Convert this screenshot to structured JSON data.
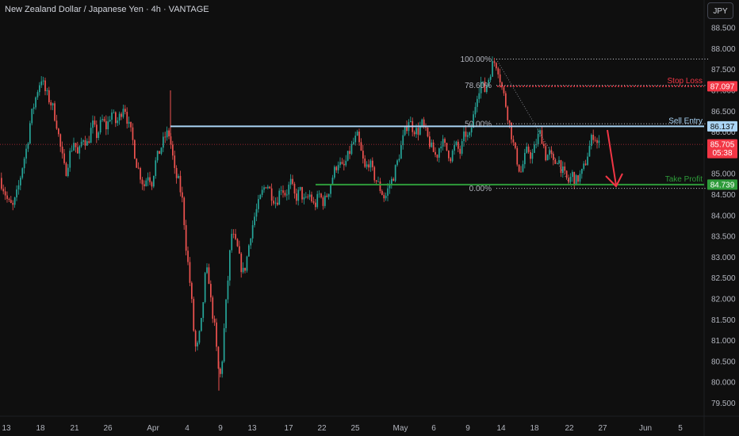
{
  "title": "New Zealand Dollar / Japanese Yen · 4h · VANTAGE",
  "currency_button": "JPY",
  "chart_data": {
    "type": "candlestick",
    "y_ticks": [
      79.5,
      80.0,
      80.5,
      81.0,
      81.5,
      82.0,
      82.5,
      83.0,
      83.5,
      84.0,
      84.5,
      85.0,
      85.5,
      86.0,
      86.5,
      87.0,
      87.5,
      88.0,
      88.5
    ],
    "ylim": [
      79.35,
      88.75
    ],
    "x_ticks": [
      "13",
      "18",
      "21",
      "26",
      "Apr",
      "4",
      "9",
      "13",
      "17",
      "22",
      "25",
      "May",
      "6",
      "9",
      "14",
      "18",
      "22",
      "27",
      "Jun",
      "5"
    ],
    "levels": [
      {
        "name": "Stop Loss",
        "value": 87.097,
        "price_label": "87.097",
        "color": "#f23645"
      },
      {
        "name": "Sell Entry",
        "value": 86.137,
        "price_label": "86.137",
        "color": "#aad4f5"
      },
      {
        "name": "Take Profit",
        "value": 84.739,
        "price_label": "84.739",
        "color": "#2e9b3a"
      }
    ],
    "last_price": {
      "value": 85.705,
      "label": "85.705",
      "countdown": "05:38",
      "color": "#f23645"
    },
    "fibonacci": [
      {
        "label": "100.00%",
        "value": 87.75
      },
      {
        "label": "78.60%",
        "value": 87.12
      },
      {
        "label": "50.00%",
        "value": 86.2
      },
      {
        "label": "0.00%",
        "value": 84.65
      }
    ],
    "path_points": [
      [
        0,
        84.9
      ],
      [
        3,
        84.8
      ],
      [
        7,
        84.6
      ],
      [
        12,
        84.3
      ],
      [
        18,
        84.2
      ],
      [
        24,
        84.6
      ],
      [
        30,
        85.2
      ],
      [
        36,
        85.7
      ],
      [
        40,
        86.3
      ],
      [
        45,
        86.7
      ],
      [
        50,
        87.1
      ],
      [
        54,
        87.3
      ],
      [
        58,
        87.0
      ],
      [
        63,
        86.8
      ],
      [
        68,
        86.6
      ],
      [
        73,
        86.2
      ],
      [
        78,
        85.6
      ],
      [
        84,
        85.0
      ],
      [
        90,
        85.5
      ],
      [
        95,
        85.8
      ],
      [
        100,
        85.4
      ],
      [
        106,
        85.9
      ],
      [
        112,
        85.7
      ],
      [
        118,
        86.2
      ],
      [
        124,
        85.9
      ],
      [
        130,
        86.3
      ],
      [
        136,
        86.1
      ],
      [
        142,
        86.5
      ],
      [
        148,
        86.2
      ],
      [
        153,
        86.4
      ],
      [
        158,
        86.7
      ],
      [
        163,
        86.2
      ],
      [
        168,
        85.9
      ],
      [
        173,
        85.3
      ],
      [
        178,
        85.0
      ],
      [
        183,
        84.7
      ],
      [
        188,
        85.0
      ],
      [
        193,
        84.8
      ],
      [
        198,
        85.3
      ],
      [
        204,
        85.6
      ],
      [
        210,
        85.9
      ],
      [
        214,
        86.0
      ],
      [
        218,
        85.6
      ],
      [
        222,
        85.0
      ],
      [
        227,
        84.8
      ],
      [
        232,
        84.3
      ],
      [
        236,
        83.3
      ],
      [
        240,
        82.6
      ],
      [
        243,
        82.0
      ],
      [
        246,
        81.2
      ],
      [
        249,
        80.7
      ],
      [
        252,
        81.0
      ],
      [
        256,
        81.5
      ],
      [
        260,
        82.5
      ],
      [
        264,
        82.7
      ],
      [
        267,
        82.0
      ],
      [
        270,
        81.6
      ],
      [
        273,
        81.2
      ],
      [
        276,
        80.4
      ],
      [
        279,
        80.1
      ],
      [
        282,
        80.6
      ],
      [
        285,
        81.5
      ],
      [
        288,
        82.2
      ],
      [
        291,
        83.0
      ],
      [
        294,
        83.6
      ],
      [
        297,
        83.4
      ],
      [
        301,
        83.2
      ],
      [
        305,
        82.8
      ],
      [
        309,
        82.6
      ],
      [
        313,
        83.0
      ],
      [
        318,
        83.6
      ],
      [
        323,
        84.0
      ],
      [
        328,
        84.3
      ],
      [
        333,
        84.6
      ],
      [
        338,
        84.8
      ],
      [
        344,
        84.5
      ],
      [
        350,
        84.3
      ],
      [
        356,
        84.7
      ],
      [
        362,
        84.5
      ],
      [
        368,
        84.8
      ],
      [
        374,
        84.4
      ],
      [
        380,
        84.6
      ],
      [
        386,
        84.3
      ],
      [
        392,
        84.5
      ],
      [
        398,
        84.2
      ],
      [
        404,
        84.5
      ],
      [
        410,
        84.3
      ],
      [
        416,
        84.6
      ],
      [
        422,
        85.0
      ],
      [
        428,
        85.3
      ],
      [
        434,
        85.1
      ],
      [
        440,
        85.4
      ],
      [
        446,
        85.7
      ],
      [
        452,
        85.9
      ],
      [
        457,
        85.5
      ],
      [
        462,
        85.1
      ],
      [
        467,
        85.3
      ],
      [
        472,
        85.0
      ],
      [
        477,
        84.8
      ],
      [
        482,
        84.6
      ],
      [
        487,
        84.4
      ],
      [
        492,
        84.7
      ],
      [
        497,
        84.9
      ],
      [
        503,
        85.3
      ],
      [
        508,
        85.7
      ],
      [
        512,
        86.0
      ],
      [
        517,
        86.3
      ],
      [
        522,
        86.1
      ],
      [
        528,
        86.0
      ],
      [
        534,
        86.2
      ],
      [
        540,
        85.9
      ],
      [
        546,
        85.6
      ],
      [
        552,
        85.4
      ],
      [
        558,
        85.8
      ],
      [
        564,
        85.6
      ],
      [
        570,
        85.4
      ],
      [
        576,
        85.7
      ],
      [
        582,
        85.5
      ],
      [
        588,
        86.0
      ],
      [
        593,
        85.8
      ],
      [
        598,
        86.3
      ],
      [
        603,
        86.9
      ],
      [
        608,
        87.2
      ],
      [
        613,
        87.0
      ],
      [
        618,
        87.3
      ],
      [
        622,
        87.6
      ],
      [
        626,
        87.7
      ],
      [
        630,
        87.5
      ],
      [
        634,
        87.1
      ],
      [
        638,
        86.8
      ],
      [
        642,
        86.4
      ],
      [
        646,
        86.0
      ],
      [
        650,
        85.6
      ],
      [
        654,
        85.3
      ],
      [
        658,
        85.0
      ],
      [
        662,
        85.3
      ],
      [
        667,
        85.6
      ],
      [
        672,
        85.4
      ],
      [
        677,
        85.7
      ],
      [
        682,
        86.0
      ],
      [
        686,
        85.8
      ],
      [
        690,
        85.4
      ],
      [
        695,
        85.5
      ],
      [
        700,
        85.2
      ],
      [
        705,
        85.4
      ],
      [
        710,
        85.1
      ],
      [
        715,
        84.9
      ],
      [
        719,
        84.8
      ],
      [
        723,
        85.0
      ],
      [
        727,
        84.8
      ],
      [
        731,
        84.9
      ],
      [
        735,
        85.0
      ],
      [
        739,
        85.2
      ],
      [
        743,
        85.5
      ],
      [
        747,
        85.8
      ],
      [
        750,
        85.95
      ],
      [
        753,
        85.85
      ],
      [
        755,
        85.705
      ]
    ]
  }
}
